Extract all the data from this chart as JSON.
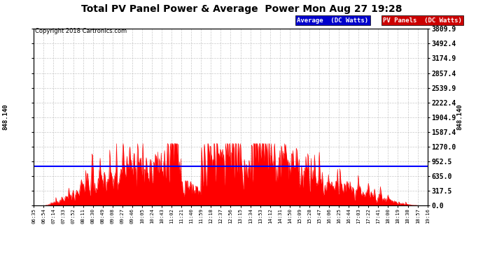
{
  "title": "Total PV Panel Power & Average  Power Mon Aug 27 19:28",
  "copyright": "Copyright 2018 Cartronics.com",
  "average_value": 848.14,
  "y_ticks": [
    0.0,
    317.5,
    635.0,
    952.5,
    1270.0,
    1587.4,
    1904.9,
    2222.4,
    2539.9,
    2857.4,
    3174.9,
    3492.4,
    3809.9
  ],
  "y_max": 3809.9,
  "y_min": 0.0,
  "panel_color": "#FF0000",
  "avg_line_color": "#0000FF",
  "background_color": "#FFFFFF",
  "grid_color": "#AAAAAA",
  "legend_avg_bg": "#0000CC",
  "legend_pv_bg": "#CC0000",
  "x_labels": [
    "06:35",
    "06:54",
    "07:14",
    "07:33",
    "07:52",
    "08:11",
    "08:30",
    "08:49",
    "09:08",
    "09:27",
    "09:46",
    "10:05",
    "10:24",
    "10:43",
    "11:02",
    "11:21",
    "11:40",
    "11:59",
    "12:18",
    "12:37",
    "12:56",
    "13:15",
    "13:34",
    "13:53",
    "14:12",
    "14:31",
    "14:50",
    "15:09",
    "15:28",
    "15:47",
    "16:06",
    "16:25",
    "16:44",
    "17:03",
    "17:22",
    "17:41",
    "18:00",
    "18:19",
    "18:38",
    "18:57",
    "19:16"
  ]
}
